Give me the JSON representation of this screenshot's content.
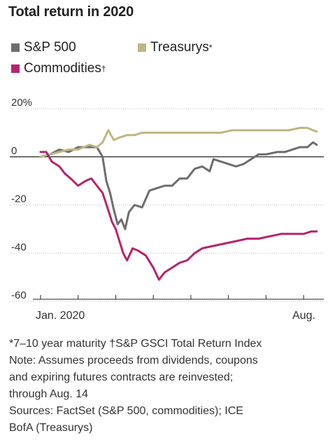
{
  "title": "Total return in 2020",
  "legend": [
    {
      "label": "S&P 500",
      "marker": "",
      "color": "#6d6d6d"
    },
    {
      "label": "Treasurys",
      "marker": "*",
      "color": "#bfb682"
    },
    {
      "label": "Commodities",
      "marker": "†",
      "color": "#b5246f"
    }
  ],
  "notes": {
    "line1": "*7–10 year maturity †S&P GSCI Total Return Index",
    "line2": "Note: Assumes proceeds from dividends, coupons",
    "line3": "and expiring futures contracts are reinvested;",
    "line4": "through Aug. 14",
    "line5": "Sources: FactSet (S&P 500, commodities); ICE",
    "line6": "BofA (Treasurys)"
  },
  "chart_data": {
    "type": "line",
    "x_ticks": [
      "Jan. 2020",
      "Aug."
    ],
    "y_ticks": [
      "20%",
      "0",
      "-20",
      "-40",
      "-60"
    ],
    "y_tick_values": [
      20,
      0,
      -20,
      -40,
      -60
    ],
    "ylim": [
      -62,
      22
    ],
    "x_range_months": [
      0,
      7.5
    ],
    "grid": "horizontal dotted",
    "series": [
      {
        "name": "S&P 500",
        "color": "#6d6d6d",
        "points": [
          [
            0,
            0
          ],
          [
            0.25,
            1
          ],
          [
            0.5,
            3
          ],
          [
            0.75,
            2
          ],
          [
            1,
            4
          ],
          [
            1.3,
            4
          ],
          [
            1.5,
            4
          ],
          [
            1.65,
            0
          ],
          [
            1.75,
            -10
          ],
          [
            1.85,
            -15
          ],
          [
            1.95,
            -22
          ],
          [
            2.05,
            -28
          ],
          [
            2.15,
            -26
          ],
          [
            2.25,
            -30
          ],
          [
            2.35,
            -23
          ],
          [
            2.5,
            -20
          ],
          [
            2.7,
            -21
          ],
          [
            2.9,
            -14
          ],
          [
            3.1,
            -13
          ],
          [
            3.3,
            -12
          ],
          [
            3.5,
            -12
          ],
          [
            3.7,
            -9
          ],
          [
            3.9,
            -9
          ],
          [
            4.1,
            -5
          ],
          [
            4.3,
            -4
          ],
          [
            4.5,
            -6
          ],
          [
            4.6,
            -1
          ],
          [
            4.8,
            -2
          ],
          [
            5,
            -3
          ],
          [
            5.2,
            -4
          ],
          [
            5.4,
            -3
          ],
          [
            5.6,
            -1
          ],
          [
            5.8,
            1
          ],
          [
            6,
            1
          ],
          [
            6.3,
            2
          ],
          [
            6.5,
            2
          ],
          [
            6.7,
            3
          ],
          [
            6.9,
            4
          ],
          [
            7.1,
            4
          ],
          [
            7.25,
            6
          ],
          [
            7.35,
            5
          ]
        ]
      },
      {
        "name": "Treasurys",
        "color": "#bfb682",
        "points": [
          [
            0,
            0
          ],
          [
            0.25,
            1
          ],
          [
            0.5,
            2
          ],
          [
            0.75,
            3
          ],
          [
            1,
            3
          ],
          [
            1.3,
            5
          ],
          [
            1.5,
            4
          ],
          [
            1.65,
            6
          ],
          [
            1.8,
            11
          ],
          [
            1.95,
            7
          ],
          [
            2.1,
            8
          ],
          [
            2.3,
            9
          ],
          [
            2.5,
            9
          ],
          [
            2.7,
            10
          ],
          [
            3,
            10
          ],
          [
            3.3,
            10
          ],
          [
            3.6,
            10
          ],
          [
            3.9,
            10
          ],
          [
            4.2,
            10
          ],
          [
            4.5,
            10
          ],
          [
            4.8,
            10
          ],
          [
            5.1,
            11
          ],
          [
            5.4,
            11
          ],
          [
            5.7,
            11
          ],
          [
            6,
            11
          ],
          [
            6.3,
            11
          ],
          [
            6.6,
            11
          ],
          [
            6.9,
            12
          ],
          [
            7.1,
            12
          ],
          [
            7.25,
            11
          ],
          [
            7.35,
            10.5
          ]
        ]
      },
      {
        "name": "Commodities",
        "color": "#b5246f",
        "points": [
          [
            0,
            2
          ],
          [
            0.15,
            2
          ],
          [
            0.3,
            -2
          ],
          [
            0.5,
            -4
          ],
          [
            0.65,
            -7
          ],
          [
            0.8,
            -9
          ],
          [
            1,
            -12
          ],
          [
            1.2,
            -10
          ],
          [
            1.35,
            -9
          ],
          [
            1.5,
            -12
          ],
          [
            1.65,
            -15
          ],
          [
            1.8,
            -22
          ],
          [
            1.9,
            -27
          ],
          [
            2,
            -30
          ],
          [
            2.1,
            -35
          ],
          [
            2.2,
            -40
          ],
          [
            2.3,
            -43
          ],
          [
            2.45,
            -38
          ],
          [
            2.6,
            -39
          ],
          [
            2.8,
            -41
          ],
          [
            3,
            -46
          ],
          [
            3.15,
            -51
          ],
          [
            3.3,
            -48
          ],
          [
            3.5,
            -46
          ],
          [
            3.7,
            -44
          ],
          [
            3.9,
            -43
          ],
          [
            4.1,
            -40
          ],
          [
            4.3,
            -38
          ],
          [
            4.6,
            -37
          ],
          [
            4.9,
            -36
          ],
          [
            5.2,
            -35
          ],
          [
            5.5,
            -34
          ],
          [
            5.8,
            -34
          ],
          [
            6.1,
            -33
          ],
          [
            6.4,
            -32
          ],
          [
            6.7,
            -32
          ],
          [
            7,
            -32
          ],
          [
            7.2,
            -31
          ],
          [
            7.35,
            -31
          ]
        ]
      }
    ]
  }
}
